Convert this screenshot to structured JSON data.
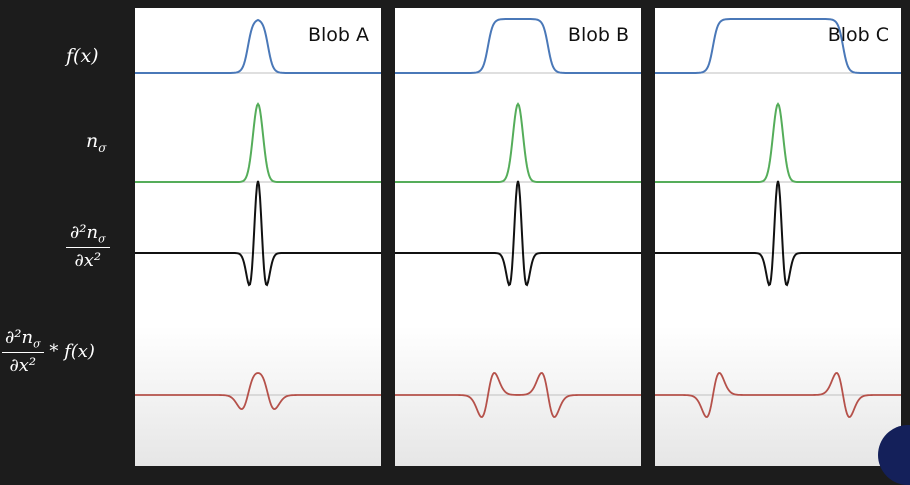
{
  "row_labels": {
    "fx": "f(x)",
    "n_sigma": "n",
    "n_sigma_sub": "σ",
    "d2n_num": "∂²n",
    "d2n_num_sub": "σ",
    "d2n_den": "∂x²",
    "conv_num": "∂²n",
    "conv_num_sub": "σ",
    "conv_den": "∂x²",
    "conv_tail": "* f(x)"
  },
  "panels": [
    {
      "title": "Blob A",
      "blob_width": 10
    },
    {
      "title": "Blob B",
      "blob_width": 30
    },
    {
      "title": "Blob C",
      "blob_width": 65
    }
  ],
  "colors": {
    "background": "#1c1c1c",
    "panel": "#ffffff",
    "fx": "#4a78b8",
    "n_sigma": "#55ad5a",
    "d2n": "#111111",
    "conv": "#b5514a",
    "baseline": "#bfbfbf"
  }
}
